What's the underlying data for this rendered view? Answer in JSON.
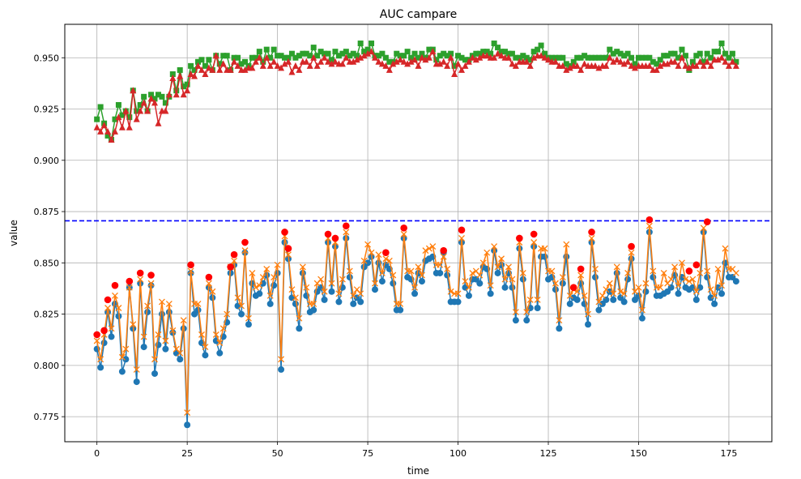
{
  "chart_data": {
    "type": "line",
    "title": "AUC campare",
    "xlabel": "time",
    "ylabel": "value",
    "xlim": [
      -8.9,
      186.9
    ],
    "ylim": [
      0.7628,
      0.9663
    ],
    "xticks": [
      0,
      25,
      50,
      75,
      100,
      125,
      150,
      175
    ],
    "yticks": [
      0.775,
      0.8,
      0.825,
      0.85,
      0.875,
      0.9,
      0.925,
      0.95
    ],
    "ytick_labels": [
      "0.775",
      "0.800",
      "0.825",
      "0.850",
      "0.875",
      "0.900",
      "0.925",
      "0.950"
    ],
    "grid": true,
    "reference_line": {
      "y": 0.8705,
      "color": "#0000ff",
      "style": "dashed"
    },
    "series": [
      {
        "marker": "circle",
        "color": "#1f77b4",
        "values": [
          0.808,
          0.799,
          0.811,
          0.826,
          0.814,
          0.83,
          0.824,
          0.797,
          0.803,
          0.838,
          0.818,
          0.792,
          0.84,
          0.809,
          0.826,
          0.839,
          0.796,
          0.81,
          0.825,
          0.808,
          0.826,
          0.816,
          0.806,
          0.803,
          0.818,
          0.771,
          0.845,
          0.825,
          0.827,
          0.811,
          0.805,
          0.838,
          0.833,
          0.812,
          0.806,
          0.814,
          0.821,
          0.845,
          0.849,
          0.829,
          0.825,
          0.855,
          0.82,
          0.84,
          0.834,
          0.835,
          0.84,
          0.844,
          0.83,
          0.839,
          0.845,
          0.798,
          0.86,
          0.852,
          0.833,
          0.83,
          0.818,
          0.845,
          0.834,
          0.826,
          0.827,
          0.836,
          0.838,
          0.832,
          0.86,
          0.836,
          0.858,
          0.831,
          0.838,
          0.862,
          0.843,
          0.83,
          0.833,
          0.831,
          0.848,
          0.85,
          0.853,
          0.837,
          0.85,
          0.841,
          0.849,
          0.847,
          0.84,
          0.827,
          0.827,
          0.862,
          0.843,
          0.842,
          0.835,
          0.845,
          0.841,
          0.851,
          0.852,
          0.853,
          0.845,
          0.845,
          0.855,
          0.844,
          0.831,
          0.831,
          0.831,
          0.86,
          0.838,
          0.834,
          0.842,
          0.842,
          0.84,
          0.848,
          0.847,
          0.835,
          0.856,
          0.845,
          0.849,
          0.838,
          0.845,
          0.838,
          0.822,
          0.857,
          0.842,
          0.822,
          0.828,
          0.858,
          0.828,
          0.853,
          0.853,
          0.842,
          0.843,
          0.837,
          0.818,
          0.84,
          0.853,
          0.83,
          0.833,
          0.832,
          0.84,
          0.83,
          0.82,
          0.86,
          0.843,
          0.827,
          0.83,
          0.832,
          0.836,
          0.832,
          0.845,
          0.833,
          0.831,
          0.842,
          0.852,
          0.832,
          0.834,
          0.823,
          0.836,
          0.865,
          0.843,
          0.834,
          0.834,
          0.835,
          0.836,
          0.838,
          0.844,
          0.835,
          0.843,
          0.838,
          0.837,
          0.838,
          0.832,
          0.838,
          0.865,
          0.843,
          0.833,
          0.83,
          0.838,
          0.835,
          0.85,
          0.843,
          0.843,
          0.841
        ]
      },
      {
        "marker": "x",
        "color": "#ff7f0e",
        "values": [
          0.812,
          0.803,
          0.815,
          0.828,
          0.818,
          0.834,
          0.828,
          0.804,
          0.808,
          0.838,
          0.82,
          0.798,
          0.842,
          0.814,
          0.829,
          0.84,
          0.803,
          0.815,
          0.831,
          0.812,
          0.83,
          0.817,
          0.808,
          0.806,
          0.822,
          0.777,
          0.846,
          0.83,
          0.83,
          0.815,
          0.809,
          0.84,
          0.836,
          0.815,
          0.811,
          0.818,
          0.825,
          0.848,
          0.851,
          0.833,
          0.829,
          0.856,
          0.823,
          0.845,
          0.838,
          0.839,
          0.843,
          0.847,
          0.834,
          0.843,
          0.849,
          0.803,
          0.863,
          0.854,
          0.837,
          0.833,
          0.823,
          0.848,
          0.838,
          0.83,
          0.83,
          0.84,
          0.842,
          0.836,
          0.862,
          0.84,
          0.86,
          0.835,
          0.842,
          0.865,
          0.846,
          0.834,
          0.837,
          0.835,
          0.851,
          0.859,
          0.855,
          0.84,
          0.854,
          0.845,
          0.852,
          0.851,
          0.844,
          0.83,
          0.83,
          0.864,
          0.846,
          0.846,
          0.838,
          0.848,
          0.844,
          0.856,
          0.857,
          0.858,
          0.849,
          0.849,
          0.853,
          0.847,
          0.836,
          0.835,
          0.835,
          0.862,
          0.841,
          0.838,
          0.845,
          0.846,
          0.844,
          0.85,
          0.855,
          0.839,
          0.858,
          0.848,
          0.852,
          0.842,
          0.848,
          0.842,
          0.826,
          0.86,
          0.845,
          0.826,
          0.832,
          0.86,
          0.832,
          0.857,
          0.857,
          0.846,
          0.846,
          0.84,
          0.822,
          0.843,
          0.859,
          0.834,
          0.837,
          0.836,
          0.844,
          0.834,
          0.825,
          0.862,
          0.847,
          0.831,
          0.834,
          0.837,
          0.84,
          0.835,
          0.848,
          0.836,
          0.835,
          0.845,
          0.855,
          0.836,
          0.838,
          0.827,
          0.84,
          0.868,
          0.846,
          0.838,
          0.838,
          0.845,
          0.84,
          0.842,
          0.848,
          0.839,
          0.85,
          0.842,
          0.841,
          0.842,
          0.836,
          0.845,
          0.867,
          0.846,
          0.837,
          0.834,
          0.847,
          0.839,
          0.857,
          0.847,
          0.847,
          0.845
        ]
      },
      {
        "marker": "square",
        "color": "#2ca02c",
        "values": [
          0.92,
          0.926,
          0.918,
          0.912,
          0.91,
          0.92,
          0.927,
          0.922,
          0.924,
          0.921,
          0.934,
          0.924,
          0.927,
          0.931,
          0.924,
          0.932,
          0.93,
          0.932,
          0.931,
          0.928,
          0.931,
          0.942,
          0.934,
          0.944,
          0.936,
          0.937,
          0.946,
          0.944,
          0.948,
          0.949,
          0.946,
          0.949,
          0.944,
          0.951,
          0.947,
          0.951,
          0.951,
          0.944,
          0.95,
          0.95,
          0.947,
          0.948,
          0.946,
          0.95,
          0.95,
          0.953,
          0.948,
          0.954,
          0.95,
          0.954,
          0.951,
          0.951,
          0.95,
          0.95,
          0.952,
          0.95,
          0.951,
          0.952,
          0.952,
          0.951,
          0.955,
          0.951,
          0.953,
          0.952,
          0.952,
          0.949,
          0.953,
          0.951,
          0.952,
          0.953,
          0.951,
          0.952,
          0.951,
          0.957,
          0.953,
          0.954,
          0.957,
          0.951,
          0.951,
          0.952,
          0.95,
          0.948,
          0.948,
          0.952,
          0.951,
          0.951,
          0.953,
          0.95,
          0.952,
          0.95,
          0.952,
          0.95,
          0.954,
          0.954,
          0.949,
          0.951,
          0.952,
          0.951,
          0.952,
          0.946,
          0.951,
          0.95,
          0.949,
          0.949,
          0.951,
          0.952,
          0.952,
          0.953,
          0.953,
          0.952,
          0.957,
          0.955,
          0.953,
          0.953,
          0.952,
          0.952,
          0.95,
          0.95,
          0.951,
          0.95,
          0.949,
          0.953,
          0.954,
          0.956,
          0.952,
          0.95,
          0.95,
          0.95,
          0.95,
          0.95,
          0.947,
          0.946,
          0.948,
          0.95,
          0.95,
          0.951,
          0.95,
          0.95,
          0.95,
          0.95,
          0.95,
          0.95,
          0.954,
          0.952,
          0.953,
          0.952,
          0.951,
          0.952,
          0.95,
          0.947,
          0.95,
          0.95,
          0.95,
          0.95,
          0.948,
          0.947,
          0.949,
          0.951,
          0.951,
          0.952,
          0.952,
          0.95,
          0.954,
          0.951,
          0.944,
          0.948,
          0.951,
          0.952,
          0.948,
          0.952,
          0.95,
          0.953,
          0.953,
          0.957,
          0.952,
          0.95,
          0.952,
          0.948
        ]
      },
      {
        "marker": "triangle",
        "color": "#d62728",
        "values": [
          0.916,
          0.914,
          0.917,
          0.914,
          0.91,
          0.914,
          0.921,
          0.916,
          0.924,
          0.916,
          0.934,
          0.92,
          0.924,
          0.928,
          0.924,
          0.93,
          0.928,
          0.918,
          0.924,
          0.924,
          0.932,
          0.94,
          0.932,
          0.941,
          0.932,
          0.934,
          0.942,
          0.941,
          0.946,
          0.944,
          0.942,
          0.945,
          0.944,
          0.951,
          0.944,
          0.947,
          0.944,
          0.944,
          0.948,
          0.946,
          0.944,
          0.944,
          0.945,
          0.945,
          0.948,
          0.95,
          0.946,
          0.95,
          0.946,
          0.948,
          0.946,
          0.945,
          0.947,
          0.948,
          0.943,
          0.946,
          0.944,
          0.948,
          0.948,
          0.946,
          0.95,
          0.946,
          0.948,
          0.95,
          0.948,
          0.947,
          0.948,
          0.947,
          0.947,
          0.95,
          0.948,
          0.948,
          0.949,
          0.95,
          0.951,
          0.952,
          0.953,
          0.95,
          0.948,
          0.947,
          0.946,
          0.944,
          0.947,
          0.948,
          0.949,
          0.948,
          0.947,
          0.948,
          0.949,
          0.946,
          0.95,
          0.949,
          0.95,
          0.953,
          0.947,
          0.947,
          0.948,
          0.946,
          0.95,
          0.942,
          0.947,
          0.944,
          0.946,
          0.948,
          0.95,
          0.949,
          0.95,
          0.951,
          0.951,
          0.95,
          0.95,
          0.952,
          0.951,
          0.95,
          0.95,
          0.947,
          0.946,
          0.948,
          0.948,
          0.948,
          0.946,
          0.95,
          0.951,
          0.951,
          0.95,
          0.949,
          0.948,
          0.948,
          0.946,
          0.946,
          0.944,
          0.945,
          0.946,
          0.946,
          0.944,
          0.947,
          0.946,
          0.946,
          0.946,
          0.945,
          0.946,
          0.946,
          0.95,
          0.948,
          0.949,
          0.948,
          0.947,
          0.948,
          0.946,
          0.945,
          0.946,
          0.946,
          0.946,
          0.946,
          0.944,
          0.944,
          0.946,
          0.947,
          0.947,
          0.948,
          0.948,
          0.946,
          0.95,
          0.946,
          0.945,
          0.946,
          0.946,
          0.948,
          0.946,
          0.948,
          0.946,
          0.949,
          0.949,
          0.95,
          0.948,
          0.946,
          0.948,
          0.946
        ]
      }
    ],
    "highlight_points": {
      "color": "#ff0000",
      "marker": "circle",
      "x": [
        0,
        2,
        3,
        5,
        9,
        12,
        15,
        26,
        31,
        37,
        38,
        41,
        52,
        53,
        64,
        66,
        69,
        80,
        85,
        96,
        101,
        117,
        121,
        132,
        134,
        137,
        148,
        153,
        164,
        166,
        169
      ],
      "y": [
        0.815,
        0.817,
        0.832,
        0.839,
        0.841,
        0.845,
        0.844,
        0.849,
        0.843,
        0.848,
        0.854,
        0.86,
        0.865,
        0.857,
        0.864,
        0.862,
        0.868,
        0.855,
        0.867,
        0.856,
        0.866,
        0.862,
        0.864,
        0.838,
        0.847,
        0.865,
        0.858,
        0.871,
        0.846,
        0.849,
        0.87
      ]
    }
  }
}
